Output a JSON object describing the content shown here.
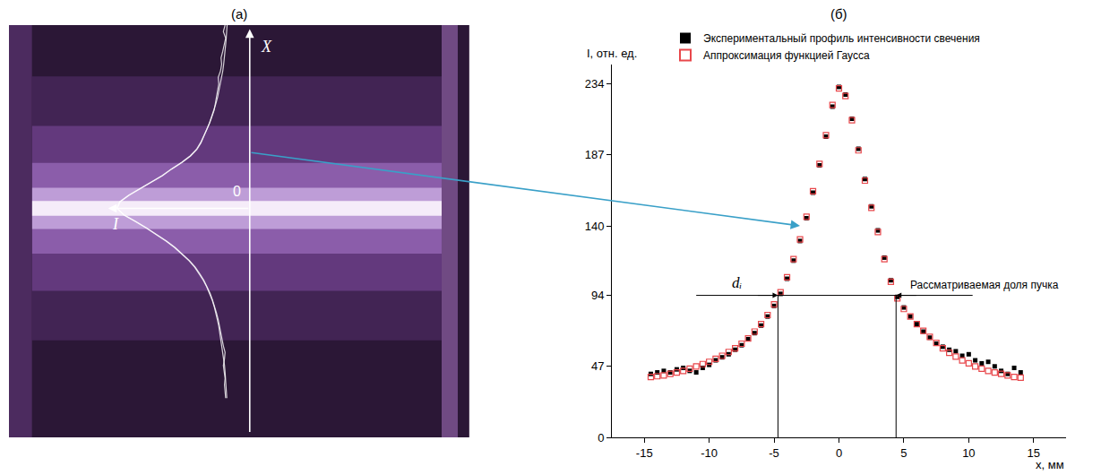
{
  "panel_labels": [
    "(а)",
    "(б)"
  ],
  "photo": {
    "axis_labels": {
      "vertical": "X",
      "horizontal": "I",
      "origin": "0"
    }
  },
  "chart_data": {
    "type": "scatter",
    "x_label": "x, мм",
    "y_label": "I, отн. ед.",
    "xlim": [
      -17.5,
      17.5
    ],
    "xticks": [
      -15,
      -10,
      -5,
      0,
      5,
      10,
      15
    ],
    "ylim": [
      0,
      247
    ],
    "yticks": [
      0,
      47,
      94,
      140,
      187,
      234
    ],
    "grid": false,
    "legend": "top",
    "x": [
      -14.5,
      -14,
      -13.5,
      -13,
      -12.5,
      -12,
      -11.5,
      -11,
      -10.5,
      -10,
      -9.5,
      -9,
      -8.5,
      -8,
      -7.5,
      -7,
      -6.5,
      -6,
      -5.5,
      -5,
      -4.5,
      -4,
      -3.5,
      -3,
      -2.5,
      -2,
      -1.5,
      -1,
      -0.5,
      0,
      0.5,
      1,
      1.5,
      2,
      2.5,
      3,
      3.5,
      4,
      4.5,
      5,
      5.5,
      6,
      6.5,
      7,
      7.5,
      8,
      8.5,
      9,
      9.5,
      10,
      10.5,
      11,
      11.5,
      12,
      12.5,
      13,
      13.5,
      14
    ],
    "series": [
      {
        "name": "Экспериментальный профиль интенсивности свечения",
        "color": "#000000",
        "marker": "square",
        "values": [
          42,
          43,
          44,
          43,
          45,
          46,
          44,
          43,
          46,
          48,
          51,
          53,
          55,
          58,
          61,
          65,
          69,
          74,
          80,
          87,
          95,
          105,
          117,
          130,
          145,
          162,
          180,
          199,
          219,
          232,
          227,
          211,
          191,
          171,
          153,
          137,
          119,
          104,
          93,
          86,
          80,
          75,
          70,
          66,
          62,
          60,
          58,
          57,
          54,
          55,
          51,
          49,
          50,
          47,
          44,
          42,
          46,
          43
        ]
      },
      {
        "name": "Аппроксимация функцией Гаусса",
        "color": "#e8474b",
        "marker": "square-open",
        "values": [
          40,
          40.5,
          41,
          42,
          43,
          44,
          45.5,
          47,
          48.5,
          50,
          52,
          54,
          56.5,
          59,
          62,
          65.5,
          70,
          75,
          81,
          88,
          96,
          106,
          118,
          131,
          146,
          163,
          181,
          200,
          220,
          231,
          226,
          210,
          190,
          170,
          152,
          136,
          118,
          103,
          92,
          85,
          80,
          75,
          70.5,
          66.5,
          62.5,
          59,
          56,
          53.5,
          51,
          49,
          47,
          45.5,
          44,
          43,
          42,
          41,
          40,
          39.5
        ]
      }
    ],
    "interval": {
      "label": "dᵢ",
      "text": "Рассматриваемая доля пучка",
      "level": 94,
      "bounds": [
        -4.7,
        4.4
      ],
      "span": [
        -11,
        10.3
      ]
    }
  }
}
